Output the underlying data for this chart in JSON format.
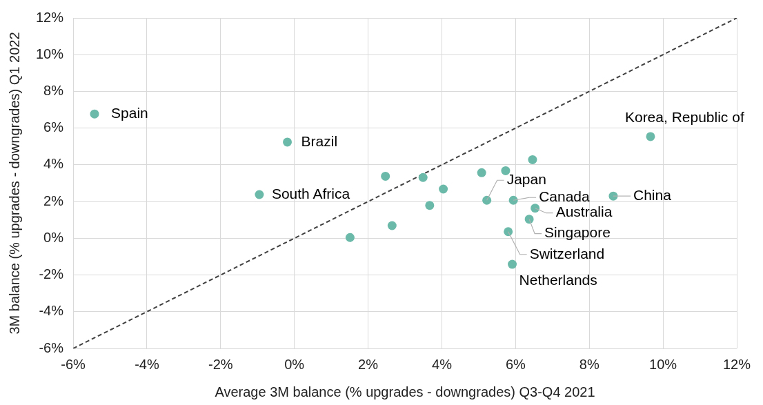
{
  "chart_data": {
    "type": "scatter",
    "xlabel": "Average 3M balance (% upgrades - downgrades) Q3-Q4 2021",
    "ylabel": "3M balance (% upgrades - downgrades) Q1 2022",
    "xlim": [
      -6,
      12
    ],
    "xticks": [
      {
        "value": -6,
        "label": "-6%"
      },
      {
        "value": -4,
        "label": "-4%"
      },
      {
        "value": -2,
        "label": "-2%"
      },
      {
        "value": 0,
        "label": "0%"
      },
      {
        "value": 2,
        "label": "2%"
      },
      {
        "value": 4,
        "label": "4%"
      },
      {
        "value": 6,
        "label": "6%"
      },
      {
        "value": 8,
        "label": "8%"
      },
      {
        "value": 10,
        "label": "10%"
      },
      {
        "value": 12,
        "label": "12%"
      }
    ],
    "ylim": [
      -6,
      12
    ],
    "yticks": [
      {
        "value": -6,
        "label": "-6%"
      },
      {
        "value": -4,
        "label": "-4%"
      },
      {
        "value": -2,
        "label": "-2%"
      },
      {
        "value": 0,
        "label": "0%"
      },
      {
        "value": 2,
        "label": "2%"
      },
      {
        "value": 4,
        "label": "4%"
      },
      {
        "value": 6,
        "label": "6%"
      },
      {
        "value": 8,
        "label": "8%"
      },
      {
        "value": 10,
        "label": "10%"
      },
      {
        "value": 12,
        "label": "12%"
      }
    ],
    "grid": true,
    "legend": false,
    "series": [
      {
        "color": "#6bbaa9",
        "marker": "circle",
        "x": [
          -5.42,
          -0.19,
          -0.95,
          1.51,
          2.65,
          2.47,
          3.49,
          3.67,
          4.04,
          5.08,
          5.73,
          5.22,
          5.94,
          6.46,
          6.53,
          6.37,
          5.8,
          5.91,
          8.65,
          9.66
        ],
        "values": [
          6.77,
          5.24,
          2.38,
          0.04,
          0.69,
          3.38,
          3.31,
          1.79,
          2.68,
          3.57,
          3.68,
          2.07,
          2.07,
          4.28,
          1.64,
          1.04,
          0.36,
          -1.42,
          2.3,
          5.54
        ]
      },
      {
        "type": "line",
        "color": "#404040",
        "marker": "none",
        "line_style": "dashed",
        "x": [
          -6,
          12
        ],
        "values": [
          -6,
          12
        ]
      }
    ],
    "annotations": [
      {
        "text": "Spain",
        "x": -5.42,
        "y": 6.77
      },
      {
        "text": "Brazil",
        "x": -0.19,
        "y": 5.24
      },
      {
        "text": "South Africa",
        "x": -0.95,
        "y": 2.38
      },
      {
        "text": "Korea, Republic of",
        "x": 9.66,
        "y": 5.54
      },
      {
        "text": "Japan",
        "x": 5.22,
        "y": 2.07
      },
      {
        "text": "Canada",
        "x": 5.94,
        "y": 2.07
      },
      {
        "text": "China",
        "x": 8.65,
        "y": 2.3
      },
      {
        "text": "Australia",
        "x": 6.53,
        "y": 1.64
      },
      {
        "text": "Singapore",
        "x": 6.37,
        "y": 1.04
      },
      {
        "text": "Switzerland",
        "x": 5.8,
        "y": 0.36
      },
      {
        "text": "Netherlands",
        "x": 5.91,
        "y": -1.42
      }
    ]
  }
}
